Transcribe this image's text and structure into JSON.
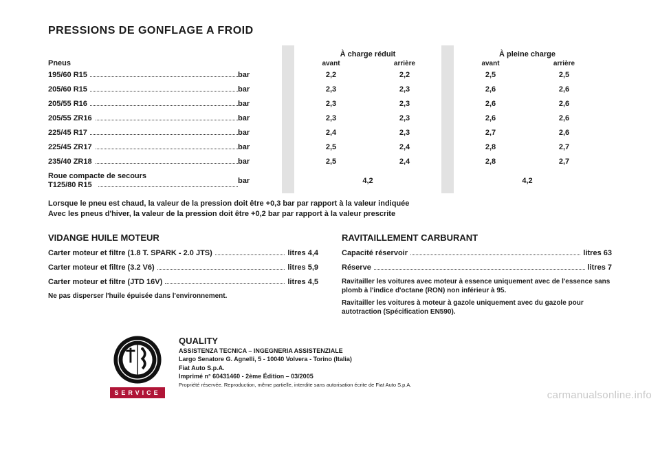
{
  "title": "PRESSIONS DE GONFLAGE A FROID",
  "table": {
    "label_header": "Pneus",
    "group_a": "À charge réduit",
    "group_b": "À pleine charge",
    "sub_front": "avant",
    "sub_rear": "arrière",
    "unit": "bar",
    "rows": [
      {
        "label": "195/60 R15",
        "a1": "2,2",
        "a2": "2,2",
        "b1": "2,5",
        "b2": "2,5"
      },
      {
        "label": "205/60 R15",
        "a1": "2,3",
        "a2": "2,3",
        "b1": "2,6",
        "b2": "2,6"
      },
      {
        "label": "205/55 R16",
        "a1": "2,3",
        "a2": "2,3",
        "b1": "2,6",
        "b2": "2,6"
      },
      {
        "label": "205/55 ZR16",
        "a1": "2,3",
        "a2": "2,3",
        "b1": "2,6",
        "b2": "2,6"
      },
      {
        "label": "225/45 R17",
        "a1": "2,4",
        "a2": "2,3",
        "b1": "2,7",
        "b2": "2,6"
      },
      {
        "label": "225/45 ZR17",
        "a1": "2,5",
        "a2": "2,4",
        "b1": "2,8",
        "b2": "2,7"
      },
      {
        "label": "235/40 ZR18",
        "a1": "2,5",
        "a2": "2,4",
        "b1": "2,8",
        "b2": "2,7"
      }
    ],
    "spare": {
      "label1": "Roue compacte de secours",
      "label2": "T125/80 R15",
      "val": "4,2"
    }
  },
  "notes": {
    "n1": "Lorsque le pneu est chaud, la valeur de la pression doit être +0,3 bar par rapport à la valeur indiquée",
    "n2": "Avec les pneus d'hiver, la valeur de la pression doit être +0,2 bar par rapport à la valeur prescrite"
  },
  "engine": {
    "heading": "VIDANGE HUILE MOTEUR",
    "lines": [
      {
        "label": "Carter moteur et filtre (1.8 T. SPARK - 2.0 JTS)",
        "val": "litres 4,4"
      },
      {
        "label": "Carter moteur et filtre (3.2 V6)",
        "val": "litres 5,9"
      },
      {
        "label": "Carter moteur et filtre (JTD 16V)",
        "val": "litres 4,5"
      }
    ],
    "foot": "Ne pas disperser l'huile épuisée dans l'environnement."
  },
  "fuel": {
    "heading": "RAVITAILLEMENT CARBURANT",
    "lines": [
      {
        "label": "Capacité réservoir",
        "val": "litres 63"
      },
      {
        "label": "Réserve",
        "val": "litres 7"
      }
    ],
    "foot1": "Ravitailler les voitures avec moteur à essence uniquement avec de l'essence sans plomb à l'indice d'octane (RON) non inférieur à 95.",
    "foot2": "Ravitailler les voitures à moteur à gazole uniquement avec du gazole pour autotraction (Spécification EN590)."
  },
  "imprint": {
    "l1": "QUALITY",
    "l2": "ASSISTENZA TECNICA – INGEGNERIA ASSISTENZIALE",
    "l3": "Largo Senatore G. Agnelli, 5 - 10040 Volvera - Torino (Italia)",
    "l4": "Fiat Auto S.p.A.",
    "l5": "Imprimé n° 60431460 - 2ème Édition – 03/2005",
    "l6": "Propriété réservée. Reproduction, même partielle, interdite sans autorisation écrite de Fiat Auto S.p.A."
  },
  "service_label": "SERVICE",
  "watermark": "carmanualsonline.info"
}
